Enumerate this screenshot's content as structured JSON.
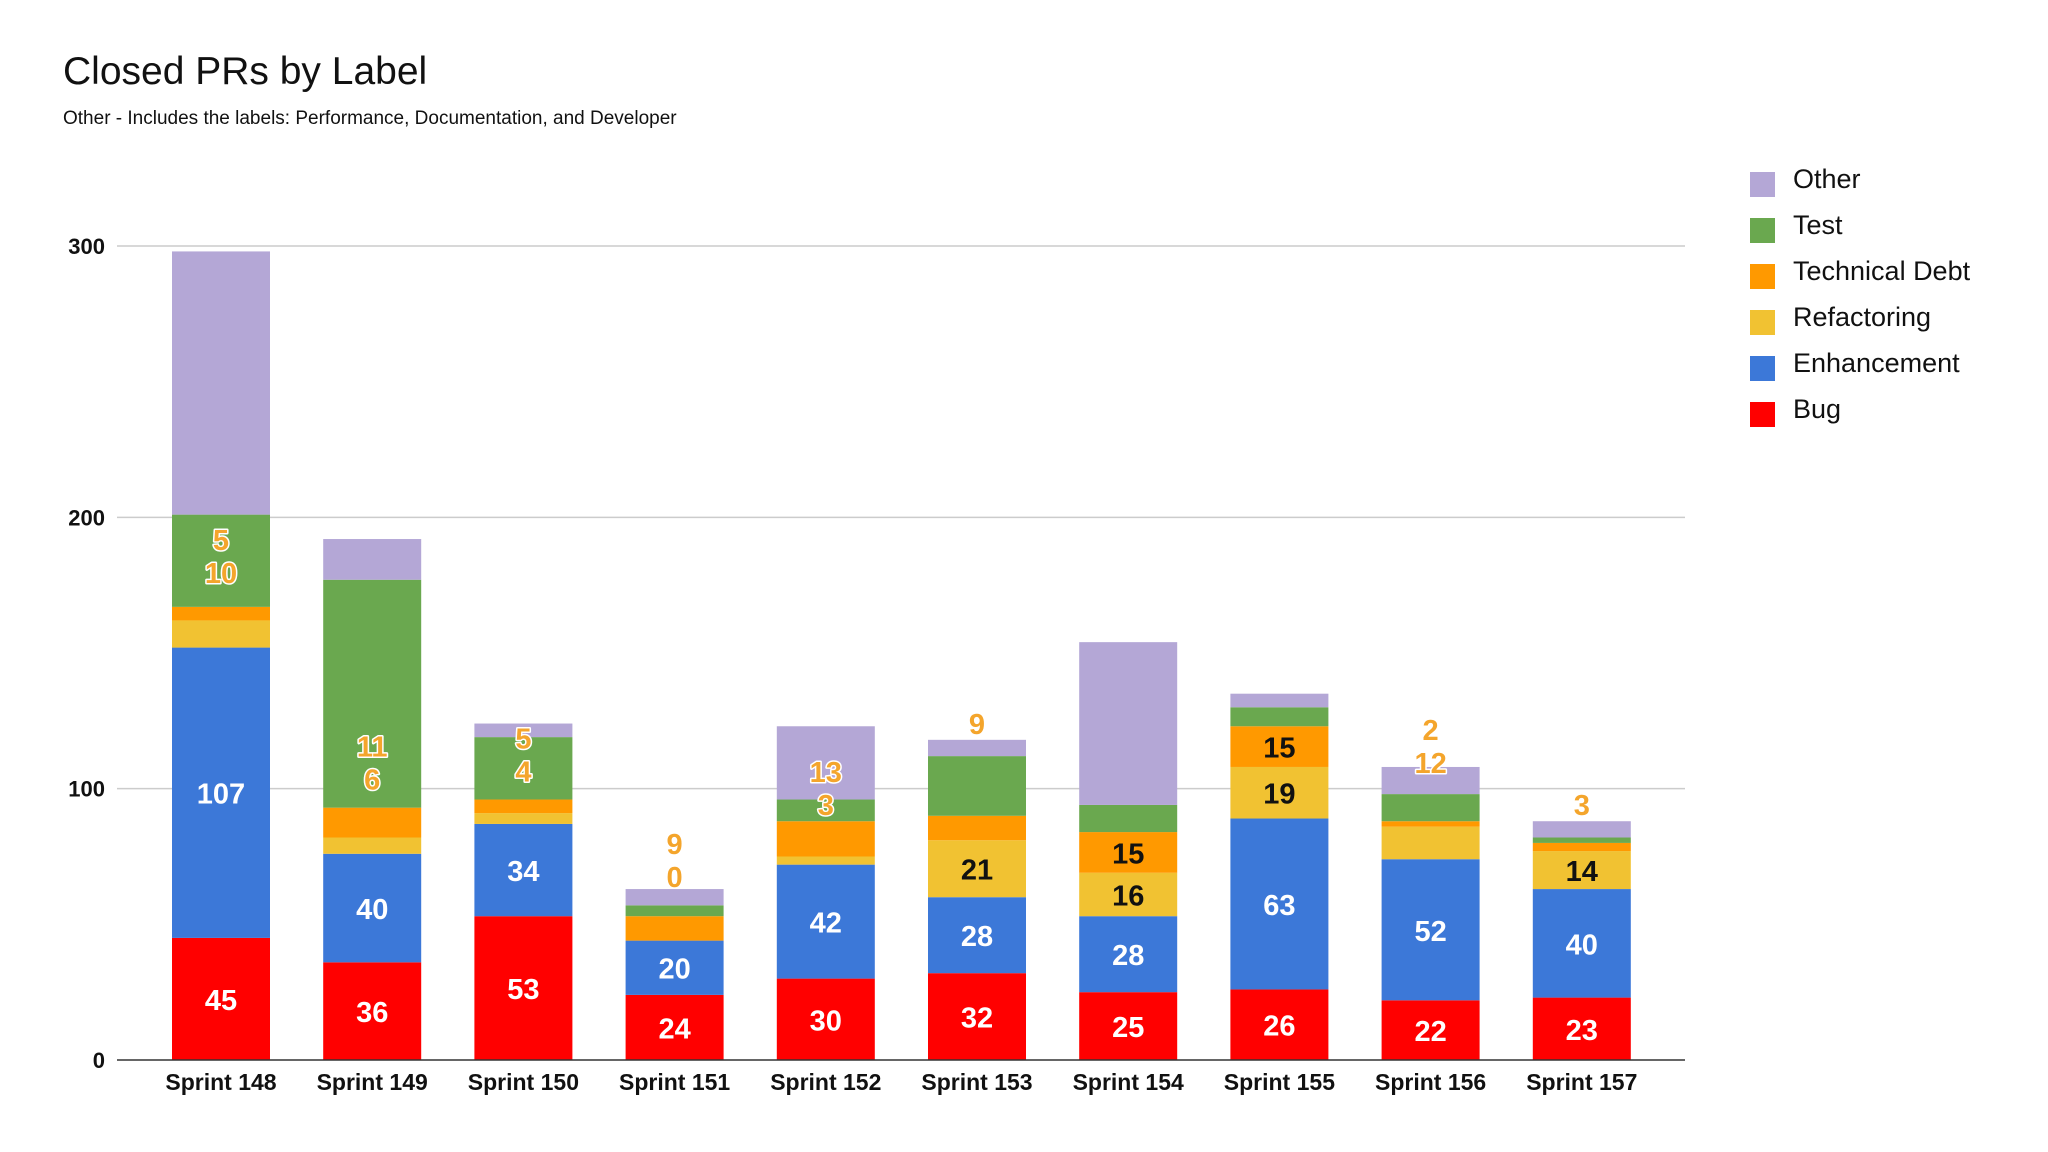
{
  "chart_data": {
    "type": "bar",
    "stacked": true,
    "title": "Closed PRs by Label",
    "subtitle": "Other - Includes the labels: Performance, Documentation, and Developer",
    "xlabel": "",
    "ylabel": "",
    "ylim": [
      0,
      300
    ],
    "yticks": [
      0,
      100,
      200,
      300
    ],
    "grid": true,
    "legend_position": "right",
    "categories": [
      "Sprint 148",
      "Sprint 149",
      "Sprint 150",
      "Sprint 151",
      "Sprint 152",
      "Sprint 153",
      "Sprint 154",
      "Sprint 155",
      "Sprint 156",
      "Sprint 157"
    ],
    "series": [
      {
        "name": "Bug",
        "color": "#ff0000",
        "values": [
          45,
          36,
          53,
          24,
          30,
          32,
          25,
          26,
          22,
          23
        ]
      },
      {
        "name": "Enhancement",
        "color": "#3c78d8",
        "values": [
          107,
          40,
          34,
          20,
          42,
          28,
          28,
          63,
          52,
          40
        ]
      },
      {
        "name": "Refactoring",
        "color": "#f1c232",
        "values": [
          10,
          6,
          4,
          0,
          3,
          21,
          16,
          19,
          12,
          14
        ]
      },
      {
        "name": "Technical Debt",
        "color": "#ff9900",
        "values": [
          5,
          11,
          5,
          9,
          13,
          9,
          15,
          15,
          2,
          3
        ]
      },
      {
        "name": "Test",
        "color": "#6aa84f",
        "values": [
          34,
          84,
          23,
          4,
          8,
          22,
          10,
          7,
          10,
          2
        ]
      },
      {
        "name": "Other",
        "color": "#b4a7d6",
        "values": [
          97,
          15,
          5,
          6,
          27,
          6,
          60,
          5,
          10,
          6
        ]
      }
    ],
    "data_labels": [
      {
        "series": "Bug",
        "values": [
          "45",
          "36",
          "53",
          "24",
          "30",
          "32",
          "25",
          "26",
          "22",
          "23"
        ]
      },
      {
        "series": "Enhancement",
        "values": [
          "107",
          "40",
          "34",
          "20",
          "42",
          "28",
          "28",
          "63",
          "52",
          "40"
        ]
      },
      {
        "series": "Refactoring",
        "values": [
          "10",
          "6",
          "4",
          "0",
          "3",
          "21",
          "16",
          "19",
          "12",
          "14"
        ]
      },
      {
        "series": "Technical Debt",
        "values": [
          "5",
          "11",
          "5",
          "9",
          "13",
          "9",
          "15",
          "15",
          "2",
          "3"
        ]
      }
    ]
  }
}
